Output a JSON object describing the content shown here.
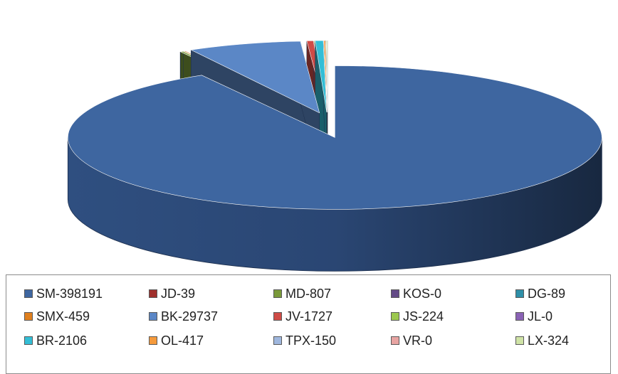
{
  "chart_data": {
    "type": "pie",
    "title": "",
    "style": "3d-exploded",
    "legend_position": "bottom",
    "series": [
      {
        "label": "SM-398191",
        "value": 398191,
        "color": "#3e66a0"
      },
      {
        "label": "JD-39",
        "value": 39,
        "color": "#a0302c"
      },
      {
        "label": "MD-807",
        "value": 807,
        "color": "#7a9a3a"
      },
      {
        "label": "KOS-0",
        "value": 0,
        "color": "#634a86"
      },
      {
        "label": "DG-89",
        "value": 89,
        "color": "#2e8fa8"
      },
      {
        "label": "SMX-459",
        "value": 459,
        "color": "#e0801e"
      },
      {
        "label": "BK-29737",
        "value": 29737,
        "color": "#5b87c6"
      },
      {
        "label": "JV-1727",
        "value": 1727,
        "color": "#cf4b46"
      },
      {
        "label": "JS-224",
        "value": 224,
        "color": "#9cc84f"
      },
      {
        "label": "JL-0",
        "value": 0,
        "color": "#8a62b5"
      },
      {
        "label": "BR-2106",
        "value": 2106,
        "color": "#33bed6"
      },
      {
        "label": "OL-417",
        "value": 417,
        "color": "#f59a3c"
      },
      {
        "label": "TPX-150",
        "value": 150,
        "color": "#9fb7de"
      },
      {
        "label": "VR-0",
        "value": 0,
        "color": "#e8a4a2"
      },
      {
        "label": "LX-324",
        "value": 324,
        "color": "#cfe3a6"
      }
    ]
  }
}
